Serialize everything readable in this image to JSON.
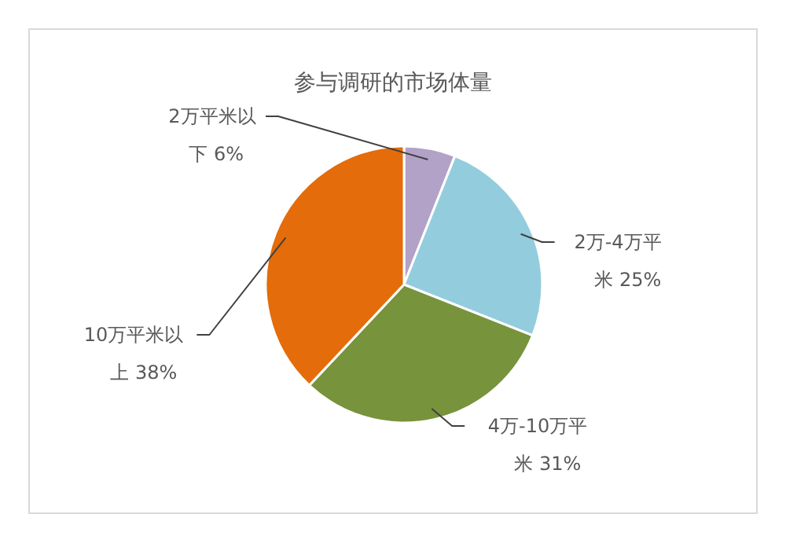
{
  "chart_data": {
    "type": "pie",
    "title": "参与调研的市场体量",
    "categories": [
      "2万平米以下",
      "2万-4万平米",
      "4万-10万平米",
      "10万平米以上"
    ],
    "values": [
      6,
      25,
      31,
      38
    ],
    "colors": [
      "#b3a2c7",
      "#93cddd",
      "#77933c",
      "#e46c0a"
    ],
    "value_labels": [
      "6%",
      "25%",
      "31%",
      "38%"
    ],
    "legend": false
  }
}
